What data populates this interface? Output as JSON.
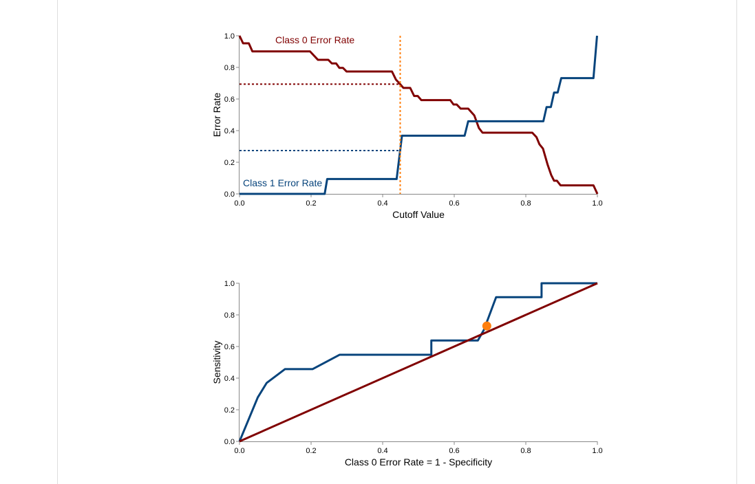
{
  "colors": {
    "class0": "#800000",
    "class1": "#07447c",
    "cutoff": "#ff7f0e",
    "axis": "#888888",
    "border": "#dddddd"
  },
  "chart_data": [
    {
      "type": "line",
      "xlabel": "Cutoff Value",
      "ylabel": "Error Rate",
      "xlim": [
        0,
        1
      ],
      "ylim": [
        0,
        1
      ],
      "xticks": [
        "0.0",
        "0.2",
        "0.4",
        "0.6",
        "0.8",
        "1.0"
      ],
      "yticks": [
        "0.0",
        "0.2",
        "0.4",
        "0.6",
        "0.8",
        "1.0"
      ],
      "grid": false,
      "cutoff": 0.449,
      "cutoff_class0_error": 0.694,
      "cutoff_class1_error": 0.274,
      "series": [
        {
          "name": "Class 0 Error Rate",
          "color": "#800000",
          "x": [
            0,
            0.01,
            0.026,
            0.036,
            0.197,
            0.219,
            0.248,
            0.258,
            0.27,
            0.279,
            0.289,
            0.299,
            0.426,
            0.437,
            0.45,
            0.458,
            0.477,
            0.488,
            0.498,
            0.508,
            0.589,
            0.598,
            0.607,
            0.618,
            0.639,
            0.656,
            0.669,
            0.679,
            0.818,
            0.83,
            0.838,
            0.848,
            0.861,
            0.871,
            0.879,
            0.887,
            0.897,
            0.989,
            1.0
          ],
          "y": [
            1.0,
            0.952,
            0.952,
            0.901,
            0.901,
            0.848,
            0.848,
            0.825,
            0.825,
            0.797,
            0.797,
            0.774,
            0.774,
            0.723,
            0.691,
            0.67,
            0.67,
            0.619,
            0.619,
            0.593,
            0.593,
            0.565,
            0.565,
            0.539,
            0.539,
            0.496,
            0.416,
            0.387,
            0.387,
            0.358,
            0.314,
            0.286,
            0.184,
            0.119,
            0.083,
            0.083,
            0.054,
            0.054,
            0
          ]
        },
        {
          "name": "Class 1 Error Rate",
          "color": "#07447c",
          "x": [
            0,
            0.238,
            0.245,
            0.439,
            0.454,
            0.629,
            0.639,
            0.849,
            0.858,
            0.87,
            0.879,
            0.889,
            0.899,
            0.989,
            0.999
          ],
          "y": [
            0,
            0,
            0.094,
            0.094,
            0.368,
            0.368,
            0.459,
            0.459,
            0.549,
            0.549,
            0.641,
            0.641,
            0.732,
            0.732,
            1.0
          ]
        }
      ]
    },
    {
      "type": "line",
      "xlabel": "Class 0 Error Rate = 1 - Specificity",
      "ylabel": "Sensitivity",
      "xlim": [
        0,
        1
      ],
      "ylim": [
        0,
        1
      ],
      "xticks": [
        "0.0",
        "0.2",
        "0.4",
        "0.6",
        "0.8",
        "1.0"
      ],
      "yticks": [
        "0.0",
        "0.2",
        "0.4",
        "0.6",
        "0.8",
        "1.0"
      ],
      "grid": false,
      "selected_point": {
        "x": 0.691,
        "y": 0.73
      },
      "series": [
        {
          "color": "#07447c",
          "x": [
            0,
            0.051,
            0.076,
            0.127,
            0.204,
            0.28,
            0.536,
            0.536,
            0.666,
            0.683,
            0.717,
            0.844,
            0.844,
            1.0
          ],
          "y": [
            0,
            0.278,
            0.37,
            0.457,
            0.457,
            0.548,
            0.548,
            0.638,
            0.638,
            0.706,
            0.912,
            0.912,
            1.0,
            1.0
          ]
        },
        {
          "color": "#800000",
          "x": [
            0,
            1
          ],
          "y": [
            0,
            1
          ]
        }
      ]
    }
  ]
}
